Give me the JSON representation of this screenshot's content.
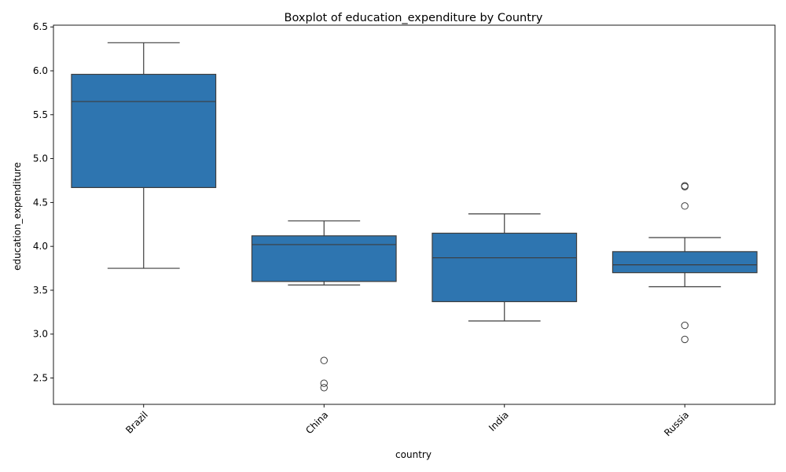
{
  "chart_data": {
    "type": "box",
    "title": "Boxplot of education_expenditure by Country",
    "xlabel": "country",
    "ylabel": "education_expenditure",
    "categories": [
      "Brazil",
      "China",
      "India",
      "Russia"
    ],
    "ylim": [
      2.2,
      6.52
    ],
    "yticks": [
      2.5,
      3.0,
      3.5,
      4.0,
      4.5,
      5.0,
      5.5,
      6.0,
      6.5
    ],
    "ytick_labels": [
      "2.5",
      "3.0",
      "3.5",
      "4.0",
      "4.5",
      "5.0",
      "5.5",
      "6.0",
      "6.5"
    ],
    "grid": false,
    "box_color": "#2e75b0",
    "line_color": "#3d3d3d",
    "boxes": [
      {
        "category": "Brazil",
        "whisker_low": 3.75,
        "q1": 4.67,
        "median": 5.65,
        "q3": 5.96,
        "whisker_high": 6.32,
        "outliers": []
      },
      {
        "category": "China",
        "whisker_low": 3.56,
        "q1": 3.6,
        "median": 4.02,
        "q3": 4.12,
        "whisker_high": 4.29,
        "outliers": [
          2.7,
          2.44,
          2.39
        ]
      },
      {
        "category": "India",
        "whisker_low": 3.15,
        "q1": 3.37,
        "median": 3.87,
        "q3": 4.15,
        "whisker_high": 4.37,
        "outliers": []
      },
      {
        "category": "Russia",
        "whisker_low": 3.54,
        "q1": 3.7,
        "median": 3.79,
        "q3": 3.94,
        "whisker_high": 4.1,
        "outliers": [
          4.69,
          4.68,
          4.46,
          3.1,
          2.94
        ]
      }
    ]
  }
}
